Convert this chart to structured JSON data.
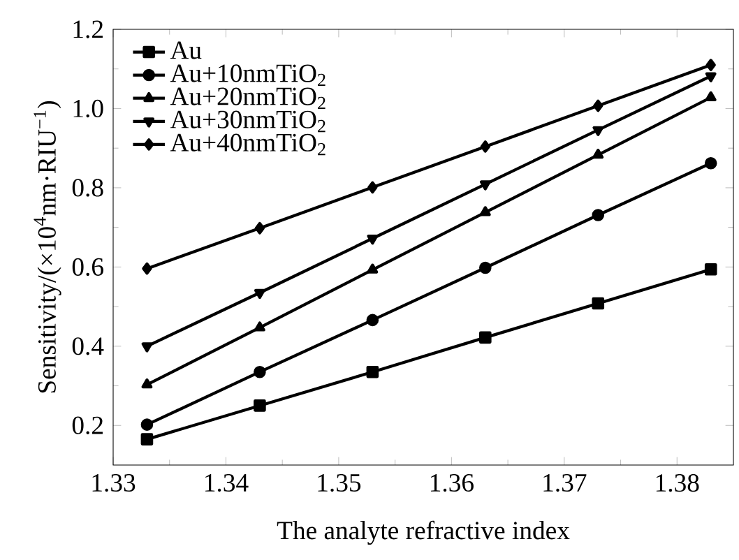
{
  "chart_data": {
    "type": "line",
    "xlabel": "The analyte refractive index",
    "ylabel": "Sensitivity/(×10$^{4}$nm·RIU$^{−1}$)",
    "x": [
      1.333,
      1.343,
      1.353,
      1.363,
      1.373,
      1.383
    ],
    "series": [
      {
        "name": "Au",
        "color": "#000000",
        "marker": "square",
        "values": [
          0.165,
          0.25,
          0.335,
          0.422,
          0.508,
          0.594
        ]
      },
      {
        "name": "Au+10nmTiO$_{2}$",
        "color": "#000000",
        "marker": "circle",
        "values": [
          0.202,
          0.335,
          0.466,
          0.598,
          0.731,
          0.862
        ]
      },
      {
        "name": "Au+20nmTiO$_{2}$",
        "color": "#000000",
        "marker": "triangle",
        "values": [
          0.303,
          0.447,
          0.593,
          0.738,
          0.883,
          1.028
        ]
      },
      {
        "name": "Au+30nmTiO$_{2}$",
        "color": "#000000",
        "marker": "triangle-down",
        "values": [
          0.4,
          0.535,
          0.672,
          0.809,
          0.946,
          1.082
        ]
      },
      {
        "name": "Au+40nmTiO$_{2}$",
        "color": "#000000",
        "marker": "diamond",
        "values": [
          0.596,
          0.698,
          0.801,
          0.904,
          1.007,
          1.11
        ]
      }
    ],
    "xlim": [
      1.33,
      1.385
    ],
    "ylim": [
      0.1,
      1.2
    ],
    "xticks": [
      1.33,
      1.34,
      1.35,
      1.36,
      1.37,
      1.38
    ],
    "yticks": [
      0.2,
      0.4,
      0.6,
      0.8,
      {
        "value": 1.0,
        "label": "1.0"
      },
      1.2
    ],
    "legend": "top left",
    "line_style": "solid",
    "grid": false
  }
}
